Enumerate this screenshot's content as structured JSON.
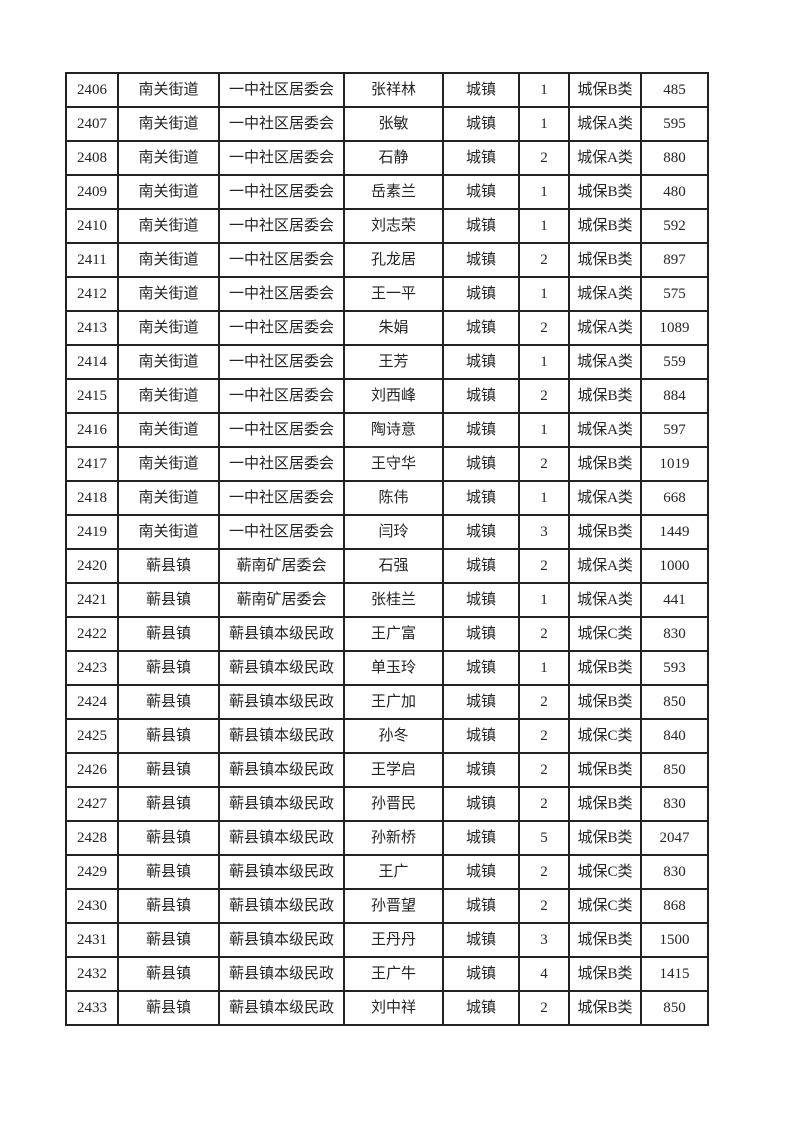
{
  "page": {
    "background_color": "#ffffff",
    "border_color": "#222222",
    "text_color": "#242424"
  },
  "table": {
    "rows": [
      {
        "id": "2406",
        "town": "南关街道",
        "unit": "一中社区居委会",
        "name": "张祥林",
        "type": "城镇",
        "count": "1",
        "category": "城保B类",
        "amount": "485"
      },
      {
        "id": "2407",
        "town": "南关街道",
        "unit": "一中社区居委会",
        "name": "张敏",
        "type": "城镇",
        "count": "1",
        "category": "城保A类",
        "amount": "595"
      },
      {
        "id": "2408",
        "town": "南关街道",
        "unit": "一中社区居委会",
        "name": "石静",
        "type": "城镇",
        "count": "2",
        "category": "城保A类",
        "amount": "880"
      },
      {
        "id": "2409",
        "town": "南关街道",
        "unit": "一中社区居委会",
        "name": "岳素兰",
        "type": "城镇",
        "count": "1",
        "category": "城保B类",
        "amount": "480"
      },
      {
        "id": "2410",
        "town": "南关街道",
        "unit": "一中社区居委会",
        "name": "刘志荣",
        "type": "城镇",
        "count": "1",
        "category": "城保B类",
        "amount": "592"
      },
      {
        "id": "2411",
        "town": "南关街道",
        "unit": "一中社区居委会",
        "name": "孔龙居",
        "type": "城镇",
        "count": "2",
        "category": "城保B类",
        "amount": "897"
      },
      {
        "id": "2412",
        "town": "南关街道",
        "unit": "一中社区居委会",
        "name": "王一平",
        "type": "城镇",
        "count": "1",
        "category": "城保A类",
        "amount": "575"
      },
      {
        "id": "2413",
        "town": "南关街道",
        "unit": "一中社区居委会",
        "name": "朱娟",
        "type": "城镇",
        "count": "2",
        "category": "城保A类",
        "amount": "1089"
      },
      {
        "id": "2414",
        "town": "南关街道",
        "unit": "一中社区居委会",
        "name": "王芳",
        "type": "城镇",
        "count": "1",
        "category": "城保A类",
        "amount": "559"
      },
      {
        "id": "2415",
        "town": "南关街道",
        "unit": "一中社区居委会",
        "name": "刘西峰",
        "type": "城镇",
        "count": "2",
        "category": "城保B类",
        "amount": "884"
      },
      {
        "id": "2416",
        "town": "南关街道",
        "unit": "一中社区居委会",
        "name": "陶诗意",
        "type": "城镇",
        "count": "1",
        "category": "城保A类",
        "amount": "597"
      },
      {
        "id": "2417",
        "town": "南关街道",
        "unit": "一中社区居委会",
        "name": "王守华",
        "type": "城镇",
        "count": "2",
        "category": "城保B类",
        "amount": "1019"
      },
      {
        "id": "2418",
        "town": "南关街道",
        "unit": "一中社区居委会",
        "name": "陈伟",
        "type": "城镇",
        "count": "1",
        "category": "城保A类",
        "amount": "668"
      },
      {
        "id": "2419",
        "town": "南关街道",
        "unit": "一中社区居委会",
        "name": "闫玲",
        "type": "城镇",
        "count": "3",
        "category": "城保B类",
        "amount": "1449"
      },
      {
        "id": "2420",
        "town": "蕲县镇",
        "unit": "蕲南矿居委会",
        "name": "石强",
        "type": "城镇",
        "count": "2",
        "category": "城保A类",
        "amount": "1000"
      },
      {
        "id": "2421",
        "town": "蕲县镇",
        "unit": "蕲南矿居委会",
        "name": "张桂兰",
        "type": "城镇",
        "count": "1",
        "category": "城保A类",
        "amount": "441"
      },
      {
        "id": "2422",
        "town": "蕲县镇",
        "unit": "蕲县镇本级民政",
        "name": "王广富",
        "type": "城镇",
        "count": "2",
        "category": "城保C类",
        "amount": "830"
      },
      {
        "id": "2423",
        "town": "蕲县镇",
        "unit": "蕲县镇本级民政",
        "name": "单玉玲",
        "type": "城镇",
        "count": "1",
        "category": "城保B类",
        "amount": "593"
      },
      {
        "id": "2424",
        "town": "蕲县镇",
        "unit": "蕲县镇本级民政",
        "name": "王广加",
        "type": "城镇",
        "count": "2",
        "category": "城保B类",
        "amount": "850"
      },
      {
        "id": "2425",
        "town": "蕲县镇",
        "unit": "蕲县镇本级民政",
        "name": "孙冬",
        "type": "城镇",
        "count": "2",
        "category": "城保C类",
        "amount": "840"
      },
      {
        "id": "2426",
        "town": "蕲县镇",
        "unit": "蕲县镇本级民政",
        "name": "王学启",
        "type": "城镇",
        "count": "2",
        "category": "城保B类",
        "amount": "850"
      },
      {
        "id": "2427",
        "town": "蕲县镇",
        "unit": "蕲县镇本级民政",
        "name": "孙晋民",
        "type": "城镇",
        "count": "2",
        "category": "城保B类",
        "amount": "830"
      },
      {
        "id": "2428",
        "town": "蕲县镇",
        "unit": "蕲县镇本级民政",
        "name": "孙新桥",
        "type": "城镇",
        "count": "5",
        "category": "城保B类",
        "amount": "2047"
      },
      {
        "id": "2429",
        "town": "蕲县镇",
        "unit": "蕲县镇本级民政",
        "name": "王广",
        "type": "城镇",
        "count": "2",
        "category": "城保C类",
        "amount": "830"
      },
      {
        "id": "2430",
        "town": "蕲县镇",
        "unit": "蕲县镇本级民政",
        "name": "孙晋望",
        "type": "城镇",
        "count": "2",
        "category": "城保C类",
        "amount": "868"
      },
      {
        "id": "2431",
        "town": "蕲县镇",
        "unit": "蕲县镇本级民政",
        "name": "王丹丹",
        "type": "城镇",
        "count": "3",
        "category": "城保B类",
        "amount": "1500"
      },
      {
        "id": "2432",
        "town": "蕲县镇",
        "unit": "蕲县镇本级民政",
        "name": "王广牛",
        "type": "城镇",
        "count": "4",
        "category": "城保B类",
        "amount": "1415"
      },
      {
        "id": "2433",
        "town": "蕲县镇",
        "unit": "蕲县镇本级民政",
        "name": "刘中祥",
        "type": "城镇",
        "count": "2",
        "category": "城保B类",
        "amount": "850"
      }
    ]
  }
}
